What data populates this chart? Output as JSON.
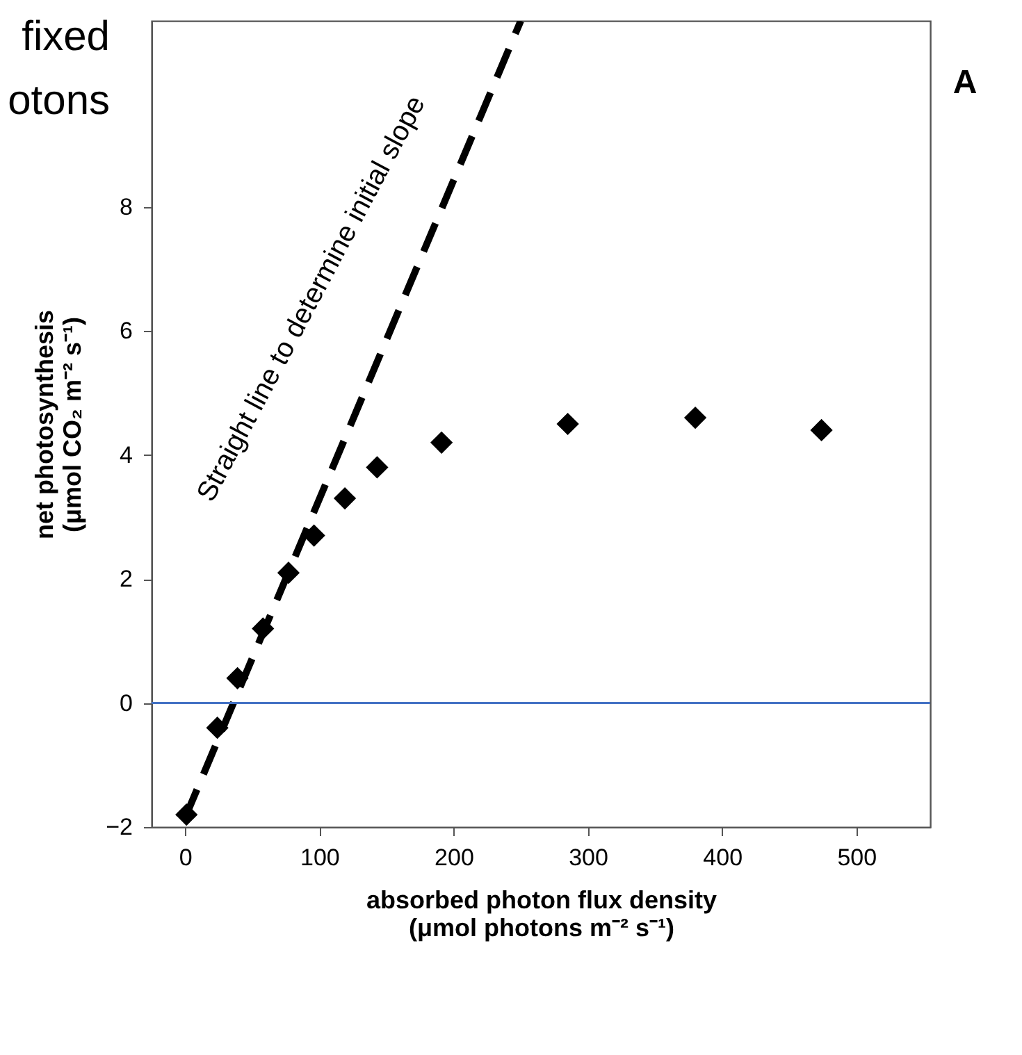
{
  "chart_data": {
    "type": "scatter",
    "xlabel": "absorbed photon flux density\n(μmol photons m⁻² s⁻¹)",
    "ylabel": "net photosynthesis\n(μmol CO₂ m⁻² s⁻¹)",
    "xlim": [
      -25,
      555
    ],
    "ylim": [
      -2,
      11
    ],
    "xticks": [
      0,
      100,
      200,
      300,
      400,
      500
    ],
    "yticks": [
      -2,
      0,
      2,
      4,
      6,
      8
    ],
    "marker": "diamond",
    "grid": false,
    "series": [
      {
        "color": "#000000",
        "x": [
          1,
          24,
          39,
          58,
          77,
          96,
          119,
          143,
          191,
          285,
          380,
          474
        ],
        "values": [
          -1.8,
          -0.4,
          0.4,
          1.2,
          2.1,
          2.7,
          3.3,
          3.8,
          4.2,
          4.5,
          4.6,
          4.4
        ]
      },
      {
        "type": "line",
        "color": "#000000",
        "line_style": "dashed",
        "marker": "none",
        "x": [
          0,
          250
        ],
        "values": [
          -1.85,
          11
        ]
      }
    ],
    "ref_lines": [
      {
        "axis": "y",
        "value": 0,
        "color": "#4472c4"
      }
    ],
    "annotations": [
      "Straight line to determine initial slope",
      "A",
      "fixed",
      "otons"
    ]
  }
}
